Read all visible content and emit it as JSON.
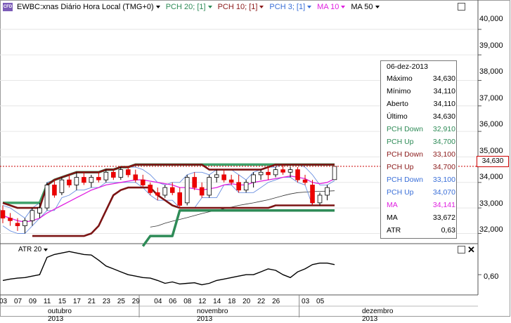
{
  "toolbar": {
    "logo_text": "CFD",
    "symbol": "EWBC:xnas Diário Hora Local (TMG+0)",
    "indicators": [
      {
        "label": "PCH 20; [1]",
        "color": "#2e8b57"
      },
      {
        "label": "PCH 10; [1]",
        "color": "#8b1a1a"
      },
      {
        "label": "PCH 3; [1]",
        "color": "#3a6fd8"
      },
      {
        "label": "MA 10",
        "color": "#e020e0"
      },
      {
        "label": "MA 50",
        "color": "#000000"
      }
    ]
  },
  "price_axis": {
    "ticks": [
      "40,000",
      "39,000",
      "38,000",
      "37,000",
      "36,000",
      "35,000",
      "34,000",
      "33,000",
      "32,000"
    ],
    "last_price": "34,630"
  },
  "info_box": {
    "date": "06-dez-2013",
    "rows": [
      {
        "label": "Máximo",
        "value": "34,630",
        "color": "#000000"
      },
      {
        "label": "Mínimo",
        "value": "34,110",
        "color": "#000000"
      },
      {
        "label": "Aberto",
        "value": "34,110",
        "color": "#000000"
      },
      {
        "label": "Último",
        "value": "34,630",
        "color": "#000000"
      },
      {
        "label": "PCH Down",
        "value": "32,910",
        "color": "#2e8b57"
      },
      {
        "label": "PCH Up",
        "value": "34,700",
        "color": "#2e8b57"
      },
      {
        "label": "PCH Down",
        "value": "33,100",
        "color": "#8b1a1a"
      },
      {
        "label": "PCH Up",
        "value": "34,700",
        "color": "#8b1a1a"
      },
      {
        "label": "PCH Down",
        "value": "33,100",
        "color": "#3a6fd8"
      },
      {
        "label": "PCH Up",
        "value": "34,070",
        "color": "#3a6fd8"
      },
      {
        "label": "MA",
        "value": "34,141",
        "color": "#e020e0"
      },
      {
        "label": "MA",
        "value": "33,672",
        "color": "#000000"
      },
      {
        "label": "ATR",
        "value": "0,63",
        "color": "#000000"
      }
    ]
  },
  "atr_panel": {
    "label": "ATR 20",
    "tick": "0,60"
  },
  "time_axis": {
    "day_labels": [
      "03",
      "07",
      "09",
      "11",
      "15",
      "17",
      "21",
      "23",
      "25",
      "29",
      "04",
      "06",
      "08",
      "12",
      "14",
      "18",
      "20",
      "22",
      "26",
      "03",
      "05"
    ],
    "month_labels": [
      "outubro 2013",
      "novembro 2013",
      "dezembro 2013"
    ]
  },
  "chart_data": {
    "type": "candlestick",
    "candles": [
      [
        32.9,
        33.1,
        32.4,
        32.6
      ],
      [
        32.6,
        32.8,
        32.3,
        32.5
      ],
      [
        32.4,
        32.6,
        32.1,
        32.3
      ],
      [
        32.3,
        32.6,
        32.0,
        32.5
      ],
      [
        32.5,
        33.0,
        32.3,
        32.9
      ],
      [
        32.8,
        33.2,
        32.6,
        33.0
      ],
      [
        33.0,
        34.0,
        32.9,
        33.9
      ],
      [
        33.9,
        34.1,
        33.4,
        33.5
      ],
      [
        33.6,
        34.2,
        33.5,
        34.1
      ],
      [
        34.1,
        34.3,
        33.8,
        33.9
      ],
      [
        33.9,
        34.4,
        33.7,
        34.2
      ],
      [
        34.2,
        34.4,
        33.9,
        34.0
      ],
      [
        34.0,
        34.3,
        33.8,
        34.2
      ],
      [
        34.2,
        34.4,
        34.0,
        34.1
      ],
      [
        34.1,
        34.5,
        34.0,
        34.4
      ],
      [
        34.4,
        34.5,
        34.1,
        34.2
      ],
      [
        34.2,
        34.6,
        34.1,
        34.5
      ],
      [
        34.5,
        34.6,
        34.2,
        34.3
      ],
      [
        34.3,
        34.5,
        34.0,
        34.1
      ],
      [
        34.1,
        34.3,
        33.8,
        33.9
      ],
      [
        33.9,
        34.0,
        33.5,
        33.6
      ],
      [
        33.6,
        33.8,
        33.3,
        33.5
      ],
      [
        33.5,
        33.9,
        33.4,
        33.8
      ],
      [
        33.8,
        34.0,
        33.5,
        33.6
      ],
      [
        33.6,
        33.8,
        33.0,
        33.1
      ],
      [
        33.2,
        34.3,
        33.1,
        34.2
      ],
      [
        34.2,
        34.4,
        33.7,
        33.8
      ],
      [
        33.8,
        34.0,
        33.4,
        33.5
      ],
      [
        33.5,
        34.3,
        33.4,
        34.2
      ],
      [
        34.2,
        34.5,
        34.0,
        34.3
      ],
      [
        34.3,
        34.5,
        34.0,
        34.1
      ],
      [
        34.1,
        34.3,
        33.9,
        34.0
      ],
      [
        34.0,
        34.3,
        33.6,
        33.7
      ],
      [
        33.7,
        34.1,
        33.6,
        34.0
      ],
      [
        34.0,
        34.4,
        33.8,
        34.3
      ],
      [
        34.3,
        34.5,
        34.1,
        34.4
      ],
      [
        34.4,
        34.6,
        34.1,
        34.3
      ],
      [
        34.3,
        34.6,
        34.2,
        34.5
      ],
      [
        34.5,
        34.7,
        34.3,
        34.4
      ],
      [
        34.4,
        34.6,
        34.2,
        34.5
      ],
      [
        34.5,
        34.6,
        34.0,
        34.1
      ],
      [
        34.1,
        34.3,
        33.9,
        34.0
      ],
      [
        33.9,
        34.1,
        33.1,
        33.2
      ],
      [
        33.2,
        33.6,
        33.1,
        33.5
      ],
      [
        33.5,
        33.9,
        33.3,
        33.8
      ],
      [
        34.11,
        34.63,
        34.11,
        34.63
      ]
    ],
    "pch20_up": [
      33.2,
      33.2,
      33.2,
      33.2,
      33.2,
      33.2,
      33.9,
      34.1,
      34.2,
      34.3,
      34.4,
      34.4,
      34.4,
      34.4,
      34.5,
      34.5,
      34.6,
      34.6,
      34.7,
      34.7,
      34.7,
      34.7,
      34.7,
      34.7,
      34.7,
      34.7,
      34.7,
      34.7,
      34.7,
      34.7,
      34.7,
      34.7,
      34.7,
      34.7,
      34.7,
      34.7,
      34.7,
      34.7,
      34.7,
      34.7,
      34.7,
      34.7,
      34.7,
      34.7,
      34.7,
      34.7
    ],
    "pch20_down": [
      null,
      null,
      null,
      null,
      null,
      null,
      null,
      null,
      null,
      null,
      null,
      null,
      null,
      null,
      null,
      null,
      null,
      null,
      null,
      31.5,
      31.9,
      31.9,
      31.9,
      31.9,
      32.9,
      32.9,
      32.9,
      32.9,
      32.9,
      32.9,
      32.9,
      32.9,
      32.9,
      32.9,
      32.9,
      32.9,
      32.9,
      32.9,
      32.9,
      32.9,
      32.9,
      32.9,
      32.9,
      32.9,
      32.9,
      32.9
    ],
    "pch10_up": [
      33.2,
      33.1,
      33.0,
      33.0,
      33.0,
      33.0,
      33.9,
      34.1,
      34.2,
      34.3,
      34.4,
      34.4,
      34.4,
      34.4,
      34.5,
      34.5,
      34.6,
      34.6,
      34.7,
      34.7,
      34.7,
      34.7,
      34.7,
      34.7,
      34.7,
      34.7,
      34.7,
      34.7,
      34.5,
      34.5,
      34.5,
      34.5,
      34.5,
      34.5,
      34.5,
      34.5,
      34.6,
      34.7,
      34.7,
      34.7,
      34.7,
      34.7,
      34.7,
      34.7,
      34.7,
      34.7
    ],
    "pch10_down": [
      null,
      null,
      null,
      null,
      31.9,
      31.9,
      31.9,
      31.9,
      31.9,
      31.9,
      31.9,
      31.9,
      32.0,
      32.3,
      32.9,
      33.5,
      33.7,
      33.8,
      33.8,
      33.8,
      33.8,
      33.5,
      33.3,
      33.1,
      33.0,
      33.0,
      33.0,
      33.0,
      33.0,
      33.0,
      33.0,
      33.0,
      33.0,
      33.0,
      33.0,
      33.0,
      33.0,
      33.1,
      33.1,
      33.1,
      33.1,
      33.1,
      33.1,
      33.1,
      33.1,
      33.1
    ],
    "pch3_up": [
      33.1,
      33.0,
      32.8,
      32.6,
      33.0,
      33.2,
      34.0,
      34.1,
      34.2,
      34.3,
      34.4,
      34.4,
      34.4,
      34.4,
      34.5,
      34.5,
      34.6,
      34.6,
      34.6,
      34.5,
      34.3,
      34.0,
      33.9,
      34.0,
      34.0,
      34.3,
      34.4,
      34.4,
      34.3,
      34.5,
      34.5,
      34.5,
      34.3,
      34.1,
      34.4,
      34.5,
      34.6,
      34.6,
      34.7,
      34.7,
      34.7,
      34.6,
      34.3,
      33.9,
      33.9,
      34.07
    ],
    "pch3_down": [
      32.3,
      32.1,
      32.0,
      32.0,
      32.3,
      32.6,
      32.9,
      32.9,
      33.4,
      33.5,
      33.7,
      33.7,
      33.8,
      33.8,
      34.0,
      34.0,
      34.0,
      34.0,
      34.0,
      33.8,
      33.5,
      33.3,
      33.3,
      33.3,
      33.0,
      33.0,
      33.0,
      33.4,
      33.4,
      33.4,
      33.9,
      33.9,
      33.6,
      33.6,
      33.6,
      33.8,
      34.0,
      34.1,
      34.2,
      34.2,
      34.0,
      33.9,
      33.1,
      33.1,
      33.1,
      33.1
    ],
    "ma10": [
      32.7,
      32.6,
      32.5,
      32.45,
      32.5,
      32.6,
      32.8,
      32.95,
      33.1,
      33.25,
      33.4,
      33.55,
      33.7,
      33.8,
      33.9,
      33.95,
      34.0,
      34.05,
      34.1,
      34.1,
      34.05,
      34.0,
      33.95,
      33.9,
      33.8,
      33.8,
      33.75,
      33.7,
      33.75,
      33.8,
      33.9,
      33.95,
      33.9,
      33.9,
      34.0,
      34.05,
      34.1,
      34.15,
      34.2,
      34.25,
      34.2,
      34.15,
      34.0,
      33.95,
      34.0,
      34.141
    ],
    "ma50": [
      null,
      null,
      null,
      null,
      null,
      null,
      null,
      null,
      null,
      null,
      null,
      null,
      null,
      null,
      null,
      null,
      null,
      null,
      null,
      null,
      32.25,
      32.3,
      32.4,
      32.48,
      32.55,
      32.62,
      32.7,
      32.78,
      32.85,
      32.9,
      32.97,
      33.03,
      33.1,
      33.15,
      33.2,
      33.26,
      33.32,
      33.4,
      33.48,
      33.55,
      33.6,
      33.62,
      33.64,
      33.65,
      33.66,
      33.672
    ],
    "atr": [
      0.58,
      0.585,
      0.588,
      0.59,
      0.595,
      0.6,
      0.66,
      0.67,
      0.675,
      0.68,
      0.675,
      0.67,
      0.668,
      0.65,
      0.63,
      0.62,
      0.61,
      0.6,
      0.595,
      0.59,
      0.588,
      0.58,
      0.57,
      0.575,
      0.568,
      0.57,
      0.572,
      0.565,
      0.57,
      0.58,
      0.585,
      0.59,
      0.595,
      0.6,
      0.6,
      0.61,
      0.62,
      0.615,
      0.6,
      0.59,
      0.61,
      0.62,
      0.635,
      0.64,
      0.64,
      0.635
    ],
    "ylim": [
      31.6,
      40.6
    ],
    "atr_ylim": [
      0.53,
      0.7
    ]
  }
}
